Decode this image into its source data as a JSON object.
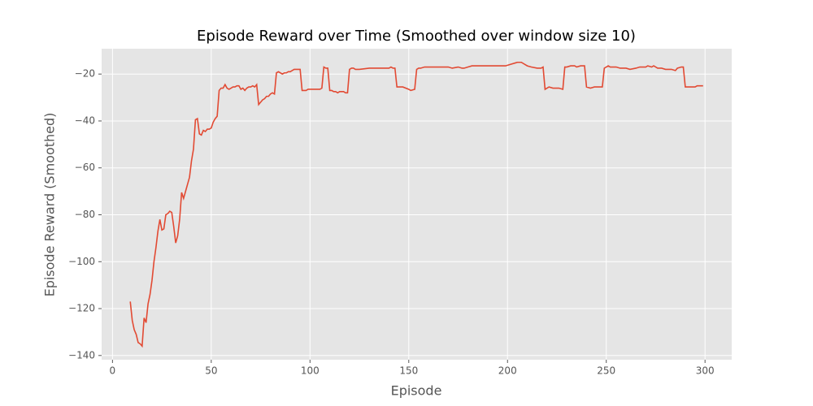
{
  "chart_data": {
    "type": "line",
    "title": "Episode Reward over Time (Smoothed over window size 10)",
    "x_label": "Episode",
    "y_label": "Episode Reward (Smoothed)",
    "xlim": [
      -5.5,
      313.5
    ],
    "ylim": [
      -141.8,
      -9.2
    ],
    "xticks": [
      0,
      50,
      100,
      150,
      200,
      250,
      300
    ],
    "yticks": [
      {
        "value": -140,
        "label": "−140"
      },
      {
        "value": -120,
        "label": "−120"
      },
      {
        "value": -100,
        "label": "−100"
      },
      {
        "value": -80,
        "label": "−80"
      },
      {
        "value": -60,
        "label": "−60"
      },
      {
        "value": -40,
        "label": "−40"
      },
      {
        "value": -20,
        "label": "−20"
      }
    ],
    "grid": true,
    "series": [
      {
        "color": "#e24a33",
        "x": [
          9,
          10,
          11,
          12,
          13,
          14,
          15,
          16,
          17,
          18,
          19,
          20,
          21,
          22,
          23,
          24,
          25,
          26,
          27,
          28,
          29,
          30,
          31,
          32,
          33,
          34,
          35,
          36,
          37,
          38,
          39,
          40,
          41,
          42,
          43,
          44,
          45,
          46,
          47,
          48,
          49,
          50,
          51,
          52,
          53,
          54,
          55,
          56,
          57,
          58,
          59,
          60,
          61,
          62,
          63,
          64,
          65,
          66,
          67,
          68,
          69,
          70,
          71,
          72,
          73,
          74,
          75,
          76,
          77,
          78,
          79,
          80,
          81,
          82,
          83,
          84,
          85,
          86,
          87,
          88,
          89,
          90,
          91,
          92,
          93,
          94,
          95,
          96,
          97,
          98,
          99,
          100,
          105,
          106,
          107,
          108,
          109,
          110,
          111,
          112,
          113,
          114,
          115,
          116,
          117,
          118,
          119,
          120,
          121,
          122,
          123,
          125,
          130,
          135,
          140,
          141,
          142,
          143,
          144,
          145,
          147,
          150,
          151,
          153,
          154,
          155,
          156,
          158,
          160,
          165,
          170,
          172,
          175,
          177,
          178,
          180,
          182,
          185,
          190,
          195,
          199,
          201,
          205,
          207,
          210,
          212,
          215,
          217,
          218,
          219,
          220,
          221,
          223,
          226,
          228,
          229,
          230,
          232,
          234,
          235,
          237,
          239,
          240,
          242,
          244,
          246,
          248,
          249,
          250,
          251,
          252,
          255,
          257,
          260,
          262,
          265,
          267,
          270,
          271,
          273,
          274,
          276,
          278,
          280,
          283,
          285,
          286,
          288,
          289,
          290,
          292,
          295,
          296,
          299
        ],
        "values": [
          -117,
          -125,
          -129,
          -131,
          -134.5,
          -135,
          -136,
          -124,
          -126,
          -118,
          -114,
          -108,
          -100,
          -94,
          -87,
          -82,
          -86.5,
          -86,
          -80,
          -79.5,
          -78.5,
          -79,
          -85,
          -92,
          -89,
          -82,
          -70.5,
          -73,
          -70,
          -67,
          -64,
          -57,
          -52,
          -39.5,
          -39,
          -45.5,
          -46,
          -44,
          -44.5,
          -43.5,
          -43.5,
          -43,
          -40.5,
          -39,
          -38,
          -27,
          -26,
          -26,
          -24.5,
          -26,
          -26.5,
          -26,
          -25.5,
          -25.5,
          -25,
          -25,
          -26.5,
          -26,
          -27,
          -26,
          -25.5,
          -25.5,
          -25,
          -25.5,
          -24.5,
          -33,
          -32,
          -31,
          -30.5,
          -29.5,
          -29.5,
          -28.5,
          -28,
          -28.5,
          -19.5,
          -19,
          -19.5,
          -20,
          -19.5,
          -19.5,
          -19,
          -19,
          -18.5,
          -18,
          -18,
          -18,
          -18,
          -27,
          -27,
          -27,
          -26.5,
          -26.5,
          -26.5,
          -26,
          -17,
          -17.5,
          -17.5,
          -27,
          -27,
          -27.5,
          -27.5,
          -28,
          -27.5,
          -27.5,
          -27.5,
          -28,
          -28,
          -18,
          -17.5,
          -17.5,
          -18,
          -18,
          -17.5,
          -17.5,
          -17.5,
          -17,
          -17.5,
          -17.5,
          -25.5,
          -25.5,
          -25.5,
          -26.5,
          -27,
          -26.5,
          -18,
          -17.5,
          -17.5,
          -17,
          -17,
          -17,
          -17,
          -17.5,
          -17,
          -17.5,
          -17.5,
          -17,
          -16.5,
          -16.5,
          -16.5,
          -16.5,
          -16.5,
          -16,
          -15,
          -15,
          -16.5,
          -17,
          -17.5,
          -17.5,
          -17,
          -26.5,
          -26,
          -25.5,
          -26,
          -26,
          -26.5,
          -17,
          -17,
          -16.5,
          -16.5,
          -17,
          -16.5,
          -16.5,
          -25.5,
          -26,
          -25.5,
          -25.5,
          -25.5,
          -17.5,
          -17,
          -16.5,
          -17,
          -17,
          -17.5,
          -17.5,
          -18,
          -17.5,
          -17,
          -17,
          -16.5,
          -17,
          -16.5,
          -17.5,
          -17.5,
          -18,
          -18,
          -18.5,
          -17.5,
          -17,
          -17,
          -25.5,
          -25.5,
          -25.5,
          -25,
          -25
        ]
      }
    ]
  }
}
